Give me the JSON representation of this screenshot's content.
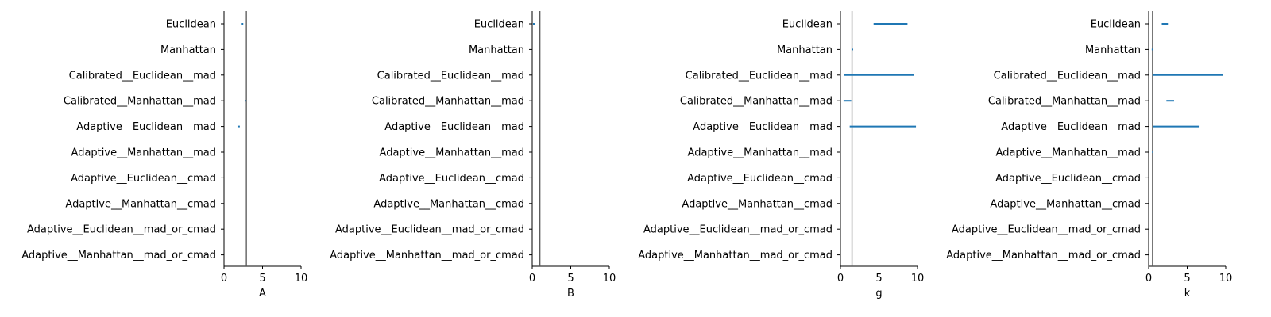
{
  "chart_data": [
    {
      "type": "interval",
      "xlabel": "A",
      "xlim": [
        0,
        10
      ],
      "xticks": [
        0,
        5,
        10
      ],
      "reference_line": 2.9,
      "categories": [
        "Euclidean",
        "Manhattan",
        "Calibrated__Euclidean__mad",
        "Calibrated__Manhattan__mad",
        "Adaptive__Euclidean__mad",
        "Adaptive__Manhattan__mad",
        "Adaptive__Euclidean__cmad",
        "Adaptive__Manhattan__cmad",
        "Adaptive__Euclidean__mad_or_cmad",
        "Adaptive__Manhattan__mad_or_cmad"
      ],
      "intervals": [
        [
          2.3,
          2.5
        ],
        null,
        null,
        [
          2.75,
          2.85
        ],
        [
          1.75,
          2.05
        ],
        null,
        null,
        null,
        null,
        null
      ]
    },
    {
      "type": "interval",
      "xlabel": "B",
      "xlim": [
        0,
        10
      ],
      "xticks": [
        0,
        5,
        10
      ],
      "reference_line": 1.0,
      "categories": [
        "Euclidean",
        "Manhattan",
        "Calibrated__Euclidean__mad",
        "Calibrated__Manhattan__mad",
        "Adaptive__Euclidean__mad",
        "Adaptive__Manhattan__mad",
        "Adaptive__Euclidean__cmad",
        "Adaptive__Manhattan__cmad",
        "Adaptive__Euclidean__mad_or_cmad",
        "Adaptive__Manhattan__mad_or_cmad"
      ],
      "intervals": [
        [
          0.1,
          0.35
        ],
        null,
        null,
        null,
        null,
        null,
        null,
        null,
        null,
        null
      ]
    },
    {
      "type": "interval",
      "xlabel": "g",
      "xlim": [
        0,
        10
      ],
      "xticks": [
        0,
        5,
        10
      ],
      "reference_line": 1.5,
      "categories": [
        "Euclidean",
        "Manhattan",
        "Calibrated__Euclidean__mad",
        "Calibrated__Manhattan__mad",
        "Adaptive__Euclidean__mad",
        "Adaptive__Manhattan__mad",
        "Adaptive__Euclidean__cmad",
        "Adaptive__Manhattan__cmad",
        "Adaptive__Euclidean__mad_or_cmad",
        "Adaptive__Manhattan__mad_or_cmad"
      ],
      "intervals": [
        [
          4.3,
          8.7
        ],
        [
          1.45,
          1.65
        ],
        [
          0.5,
          9.5
        ],
        [
          0.4,
          1.4
        ],
        [
          1.2,
          9.8
        ],
        null,
        null,
        null,
        null,
        null
      ]
    },
    {
      "type": "interval",
      "xlabel": "k",
      "xlim": [
        0,
        10
      ],
      "xticks": [
        0,
        5,
        10
      ],
      "reference_line": 0.5,
      "categories": [
        "Euclidean",
        "Manhattan",
        "Calibrated__Euclidean__mad",
        "Calibrated__Manhattan__mad",
        "Adaptive__Euclidean__mad",
        "Adaptive__Manhattan__mad",
        "Adaptive__Euclidean__cmad",
        "Adaptive__Manhattan__cmad",
        "Adaptive__Euclidean__mad_or_cmad",
        "Adaptive__Manhattan__mad_or_cmad"
      ],
      "intervals": [
        [
          1.7,
          2.5
        ],
        [
          0.4,
          0.6
        ],
        [
          0.5,
          9.6
        ],
        [
          2.3,
          3.3
        ],
        [
          0.6,
          6.5
        ],
        [
          0.45,
          0.6
        ],
        null,
        null,
        null,
        null
      ]
    }
  ],
  "style": {
    "interval_color": "#1f77b4",
    "reference_line_color": "#555555",
    "axis_color": "#000000"
  }
}
